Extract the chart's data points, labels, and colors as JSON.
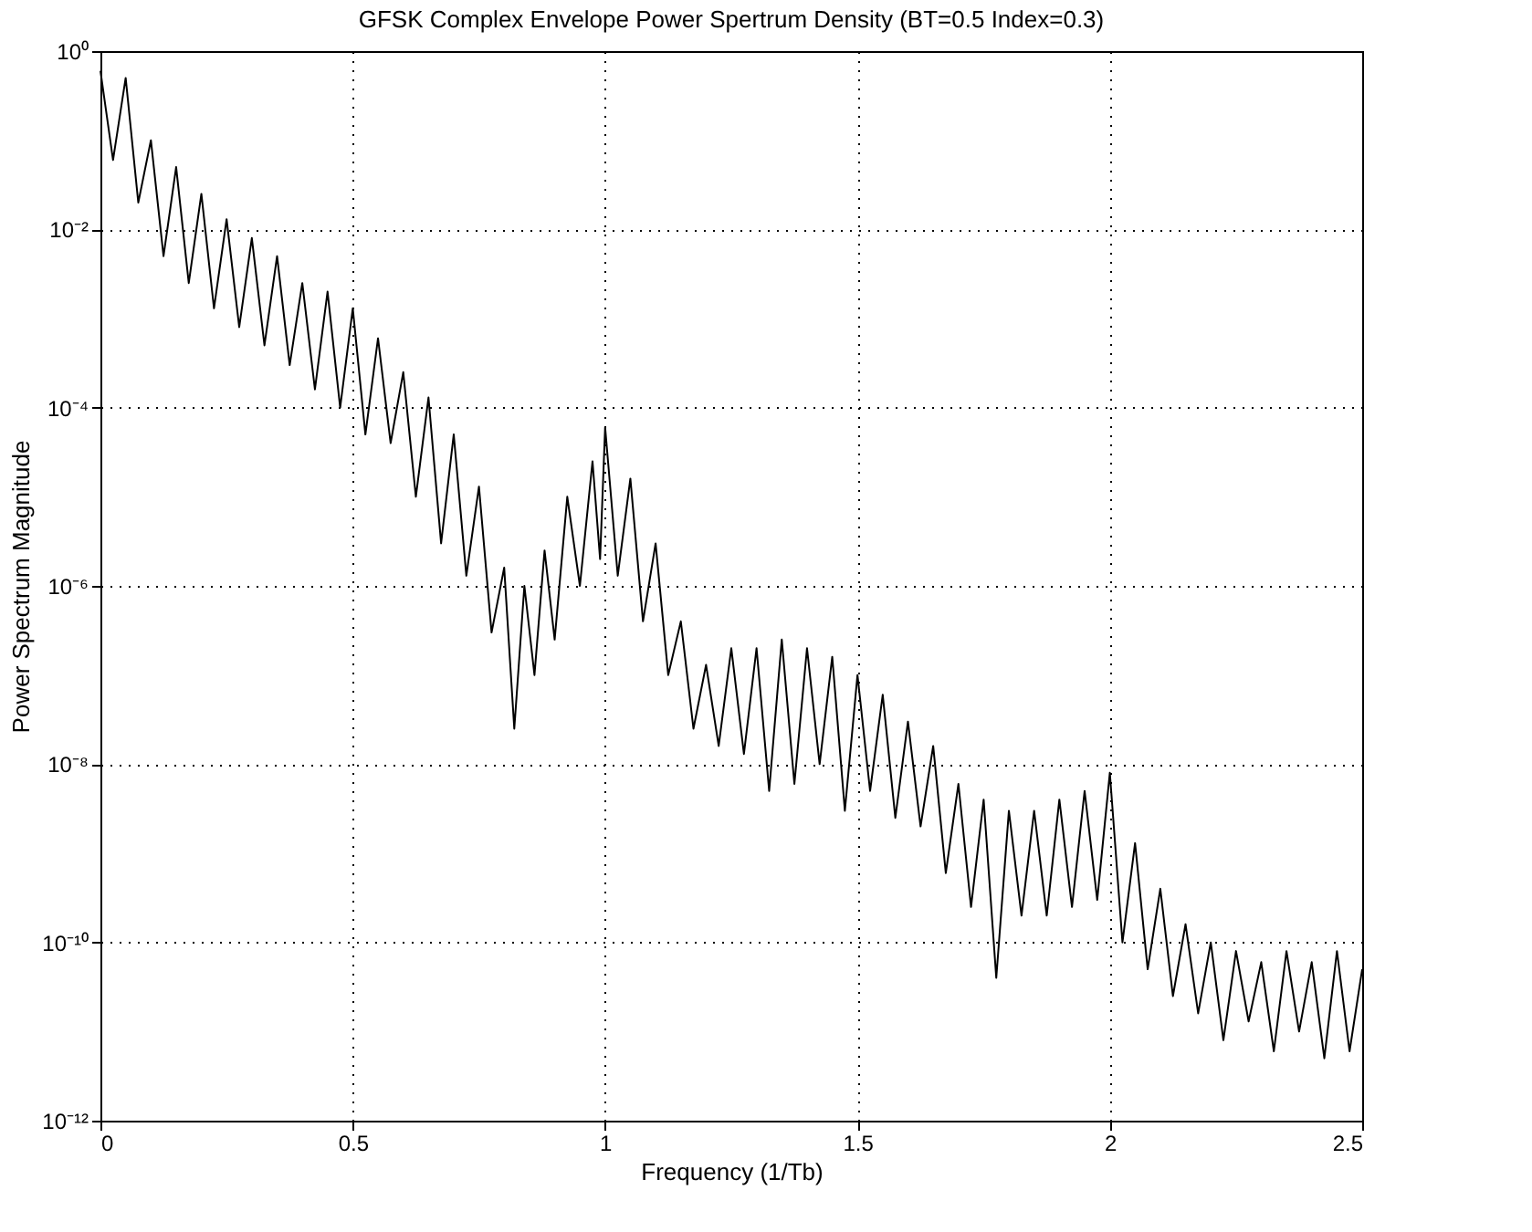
{
  "chart_data": {
    "type": "line",
    "title": "GFSK Complex Envelope Power Spertrum Density (BT=0.5 Index=0.3)",
    "xlabel": "Frequency (1/Tb)",
    "ylabel": "Power Spectrum Magnitude",
    "x": [
      0.0,
      0.025,
      0.05,
      0.075,
      0.1,
      0.125,
      0.15,
      0.175,
      0.2,
      0.225,
      0.25,
      0.275,
      0.3,
      0.325,
      0.35,
      0.375,
      0.4,
      0.425,
      0.45,
      0.475,
      0.5,
      0.525,
      0.55,
      0.575,
      0.6,
      0.625,
      0.65,
      0.675,
      0.7,
      0.725,
      0.75,
      0.775,
      0.8,
      0.82,
      0.84,
      0.86,
      0.88,
      0.9,
      0.925,
      0.95,
      0.975,
      0.99,
      1.0,
      1.025,
      1.05,
      1.075,
      1.1,
      1.125,
      1.15,
      1.175,
      1.2,
      1.225,
      1.25,
      1.275,
      1.3,
      1.325,
      1.35,
      1.375,
      1.4,
      1.425,
      1.45,
      1.475,
      1.5,
      1.525,
      1.55,
      1.575,
      1.6,
      1.625,
      1.65,
      1.675,
      1.7,
      1.725,
      1.75,
      1.775,
      1.8,
      1.825,
      1.85,
      1.875,
      1.9,
      1.925,
      1.95,
      1.975,
      2.0,
      2.025,
      2.05,
      2.075,
      2.1,
      2.125,
      2.15,
      2.175,
      2.2,
      2.225,
      2.25,
      2.275,
      2.3,
      2.325,
      2.35,
      2.375,
      2.4,
      2.425,
      2.45,
      2.475,
      2.5
    ],
    "series": [
      {
        "color": "#000000",
        "values": [
          0.6,
          0.06,
          0.5,
          0.02,
          0.1,
          0.005,
          0.05,
          0.0025,
          0.025,
          0.0013,
          0.013,
          0.0008,
          0.008,
          0.0005,
          0.005,
          0.0003,
          0.0025,
          0.00016,
          0.002,
          0.0001,
          0.0013,
          5e-05,
          0.0006,
          4e-05,
          0.00025,
          1e-05,
          0.00013,
          3e-06,
          5e-05,
          1.3e-06,
          1.3e-05,
          3e-07,
          1.6e-06,
          2.5e-08,
          1e-06,
          1e-07,
          2.5e-06,
          2.5e-07,
          1e-05,
          1e-06,
          2.5e-05,
          2e-06,
          6e-05,
          1.3e-06,
          1.6e-05,
          4e-07,
          3e-06,
          1e-07,
          4e-07,
          2.5e-08,
          1.3e-07,
          1.6e-08,
          2e-07,
          1.3e-08,
          2e-07,
          5e-09,
          2.5e-07,
          6e-09,
          2e-07,
          1e-08,
          1.6e-07,
          3e-09,
          1e-07,
          5e-09,
          6e-08,
          2.5e-09,
          3e-08,
          2e-09,
          1.6e-08,
          6e-10,
          6e-09,
          2.5e-10,
          4e-09,
          4e-11,
          3e-09,
          2e-10,
          3e-09,
          2e-10,
          4e-09,
          2.5e-10,
          5e-09,
          3e-10,
          8e-09,
          1e-10,
          1.3e-09,
          5e-11,
          4e-10,
          2.5e-11,
          1.6e-10,
          1.6e-11,
          1e-10,
          8e-12,
          8e-11,
          1.3e-11,
          6e-11,
          6e-12,
          8e-11,
          1e-11,
          6e-11,
          5e-12,
          8e-11,
          6e-12,
          5e-11
        ]
      }
    ],
    "xlim": [
      0,
      2.5
    ],
    "xticks": [
      0,
      0.5,
      1,
      1.5,
      2,
      2.5
    ],
    "ylim": [
      1e-12,
      1
    ],
    "log": true,
    "yticks": [
      {
        "value": 1e-12,
        "label": "10⁻¹²"
      },
      {
        "value": 1e-10,
        "label": "10⁻¹⁰"
      },
      {
        "value": 1e-08,
        "label": "10⁻⁸"
      },
      {
        "value": 1e-06,
        "label": "10⁻⁶"
      },
      {
        "value": 0.0001,
        "label": "10⁻⁴"
      },
      {
        "value": 0.01,
        "label": "10⁻²"
      },
      {
        "value": 1,
        "label": "10⁰"
      }
    ],
    "grid": true,
    "line_style": "solid",
    "legend": false
  }
}
